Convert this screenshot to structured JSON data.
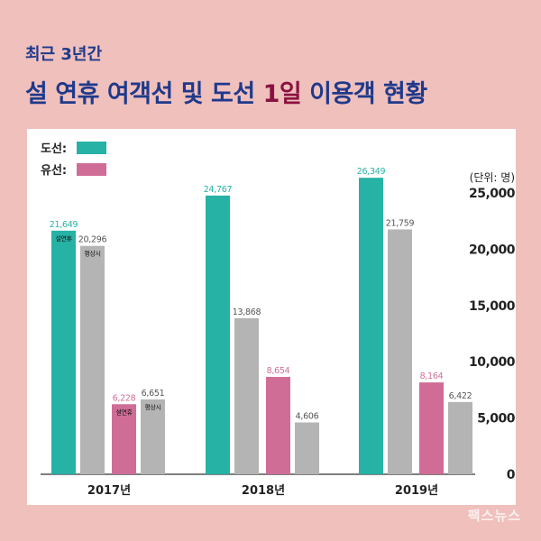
{
  "header": {
    "subtitle": "최근 3년간",
    "title_part1": "설 연휴 여객선 및 도선 ",
    "title_highlight": "1일",
    "title_part2": " 이용객 현황"
  },
  "watermark": "팩스뉴스",
  "colors": {
    "background": "#f0c0bd",
    "title": "#1f3a8a",
    "highlight": "#8a1240",
    "doseon": "#26b2a5",
    "yuseon": "#d06d97",
    "normal": "#b4b4b4",
    "label_dark": "#555555"
  },
  "chart_data": {
    "type": "bar",
    "categories": [
      "2017년",
      "2018년",
      "2019년"
    ],
    "unit_label": "(단위: 명)",
    "ylim": [
      0,
      25000
    ],
    "y_ticks": [
      "0",
      "5,000",
      "10,000",
      "15,000",
      "20,000",
      "25,000"
    ],
    "y_tick_values": [
      0,
      5000,
      10000,
      15000,
      20000,
      25000
    ],
    "legend": [
      {
        "label": "도선:",
        "color_key": "doseon"
      },
      {
        "label": "유선:",
        "color_key": "yuseon"
      }
    ],
    "legend_placement": "top-left",
    "grid": false,
    "groups": [
      {
        "category": "2017년",
        "bars": [
          {
            "value": 21649,
            "label": "21,649",
            "color_key": "doseon",
            "inner_label": "설연휴"
          },
          {
            "value": 20296,
            "label": "20,296",
            "color_key": "normal",
            "inner_label": "평상시"
          },
          {
            "value": 6228,
            "label": "6,228",
            "color_key": "yuseon",
            "inner_label": "설연휴"
          },
          {
            "value": 6651,
            "label": "6,651",
            "color_key": "normal",
            "inner_label": "평상시"
          }
        ]
      },
      {
        "category": "2018년",
        "bars": [
          {
            "value": 24767,
            "label": "24,767",
            "color_key": "doseon",
            "inner_label": ""
          },
          {
            "value": 13868,
            "label": "13,868",
            "color_key": "normal",
            "inner_label": ""
          },
          {
            "value": 8654,
            "label": "8,654",
            "color_key": "yuseon",
            "inner_label": ""
          },
          {
            "value": 4606,
            "label": "4,606",
            "color_key": "normal",
            "inner_label": ""
          }
        ]
      },
      {
        "category": "2019년",
        "bars": [
          {
            "value": 26349,
            "label": "26,349",
            "color_key": "doseon",
            "inner_label": ""
          },
          {
            "value": 21759,
            "label": "21,759",
            "color_key": "normal",
            "inner_label": ""
          },
          {
            "value": 8164,
            "label": "8,164",
            "color_key": "yuseon",
            "inner_label": ""
          },
          {
            "value": 6422,
            "label": "6,422",
            "color_key": "normal",
            "inner_label": ""
          }
        ]
      }
    ]
  }
}
